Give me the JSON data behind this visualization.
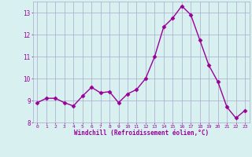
{
  "x": [
    0,
    1,
    2,
    3,
    4,
    5,
    6,
    7,
    8,
    9,
    10,
    11,
    12,
    13,
    14,
    15,
    16,
    17,
    18,
    19,
    20,
    21,
    22,
    23
  ],
  "y": [
    8.9,
    9.1,
    9.1,
    8.9,
    8.75,
    9.2,
    9.6,
    9.35,
    9.4,
    8.9,
    9.3,
    9.5,
    10.0,
    11.0,
    12.35,
    12.75,
    13.3,
    12.9,
    11.75,
    10.6,
    9.85,
    8.7,
    8.2,
    8.55
  ],
  "line_color": "#990099",
  "marker": "D",
  "marker_size": 2.5,
  "bg_color": "#d8f0f0",
  "grid_color": "#aaaacc",
  "xlabel": "Windchill (Refroidissement éolien,°C)",
  "xlabel_color": "#990099",
  "tick_color": "#990099",
  "ylim": [
    8.0,
    13.5
  ],
  "yticks": [
    8,
    9,
    10,
    11,
    12,
    13
  ],
  "xticks": [
    0,
    1,
    2,
    3,
    4,
    5,
    6,
    7,
    8,
    9,
    10,
    11,
    12,
    13,
    14,
    15,
    16,
    17,
    18,
    19,
    20,
    21,
    22,
    23
  ],
  "line_width": 1.0,
  "spine_color": "#aaaacc"
}
